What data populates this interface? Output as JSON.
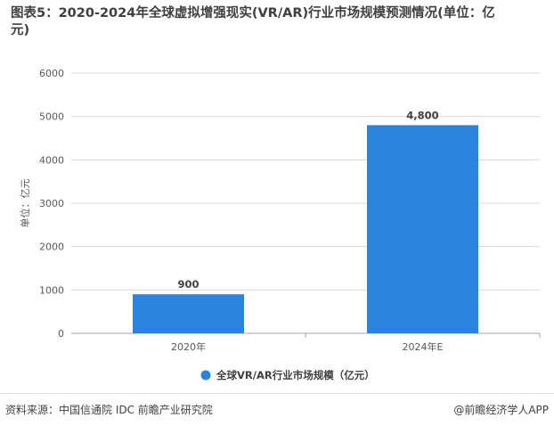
{
  "title": {
    "line1": "图表5：2020-2024年全球虚拟增强现实(VR/AR)行业市场规模预测情况(单位：亿",
    "line2": "元)"
  },
  "chart_data": {
    "type": "bar",
    "categories": [
      "2020年",
      "2024年E"
    ],
    "series": [
      {
        "name": "全球VR/AR行业市场规模（亿元）",
        "values": [
          900,
          4800
        ],
        "data_labels": [
          "900",
          "4,800"
        ]
      }
    ],
    "ylabel": "单位：亿元",
    "ylim": [
      0,
      6000
    ],
    "yticks": [
      "0",
      "1000",
      "2000",
      "3000",
      "4000",
      "5000",
      "6000"
    ],
    "grid": true,
    "legend": "bottom-center",
    "bar_color": "#2a84de"
  },
  "footer": {
    "source": "资料来源：中国信通院 IDC 前瞻产业研究院",
    "brand": "@前瞻经济学人APP"
  }
}
